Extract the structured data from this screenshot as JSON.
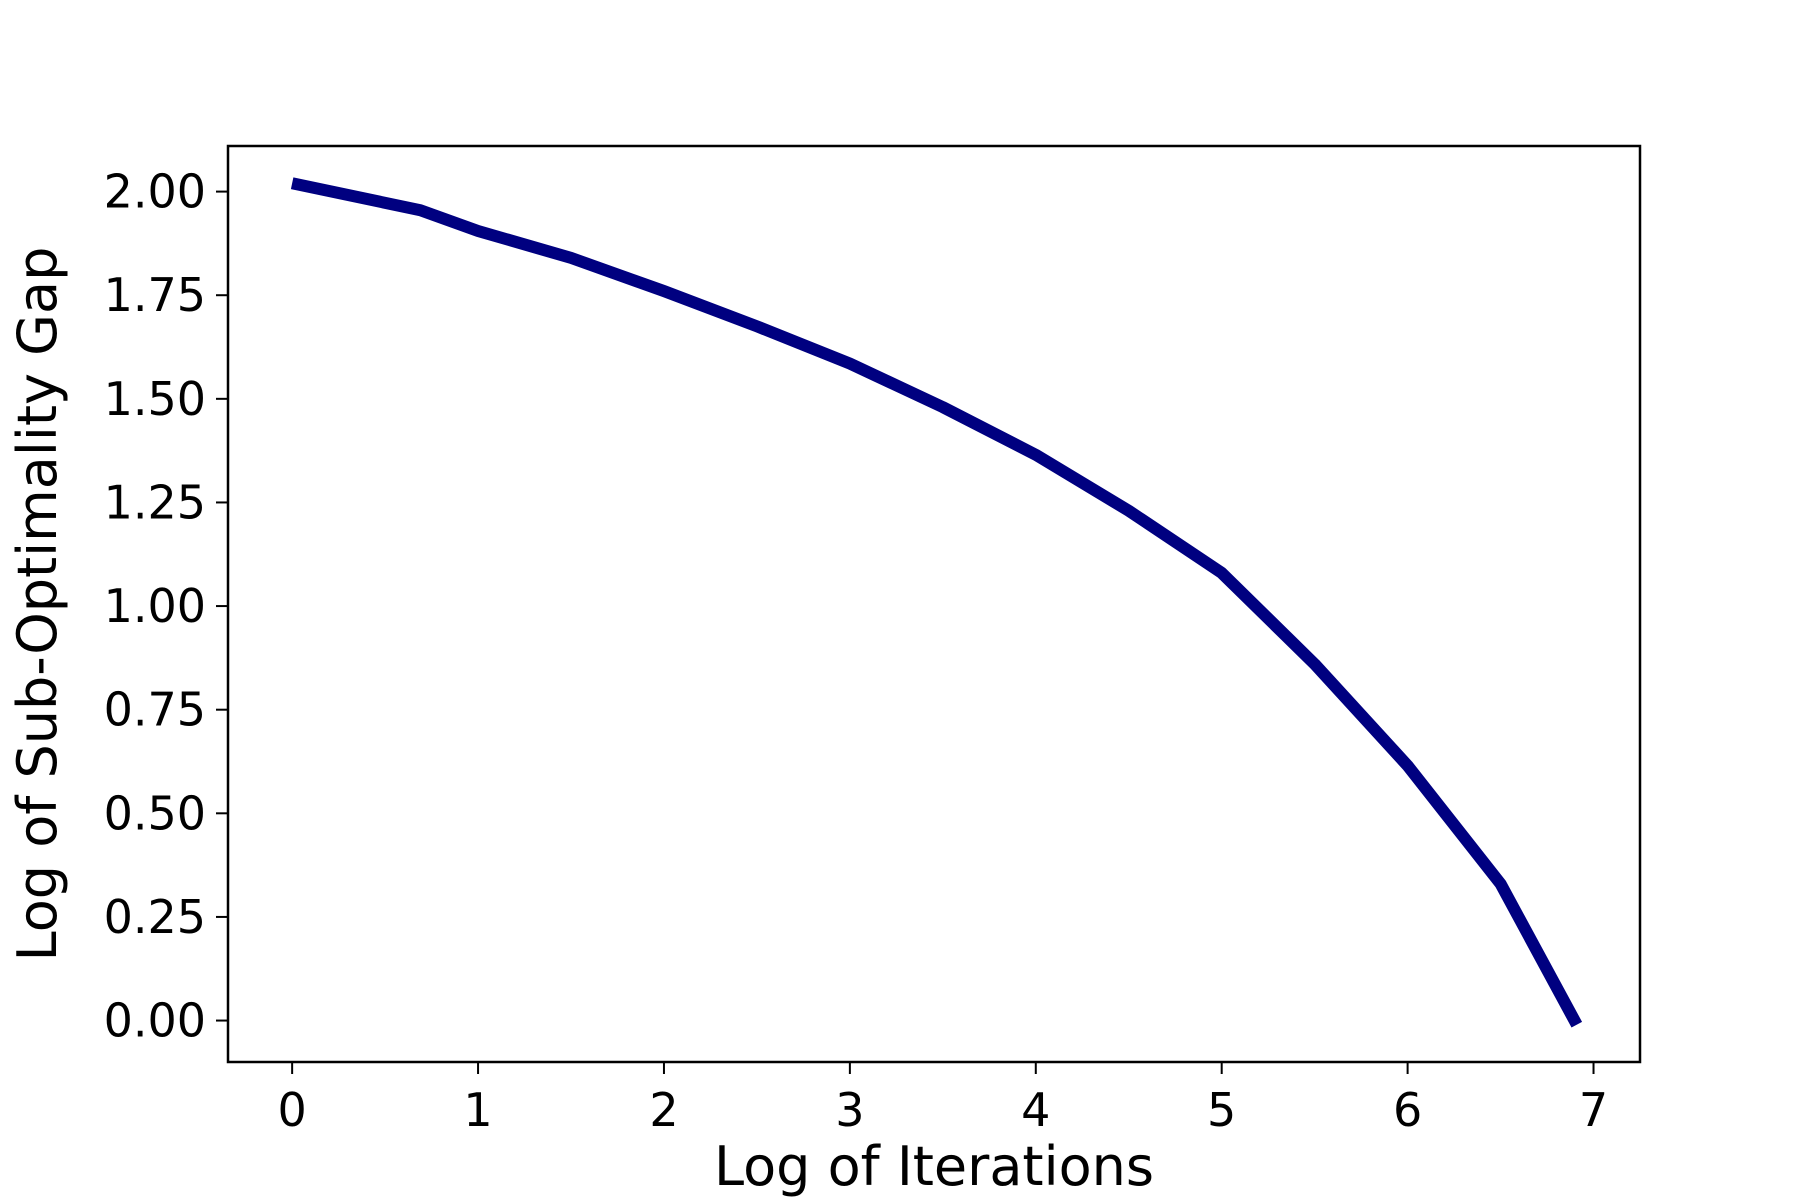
{
  "chart_data": {
    "type": "line",
    "x_label": "Log of Iterations",
    "y_label": "Log of Sub-Optimality Gap",
    "x": [
      0,
      0.69,
      1,
      1.5,
      2,
      2.5,
      3,
      3.5,
      4,
      4.5,
      5,
      5.5,
      6,
      6.5,
      6.91
    ],
    "series": [
      {
        "color": "#000080",
        "values": [
          2.02,
          1.955,
          1.905,
          1.84,
          1.76,
          1.675,
          1.585,
          1.48,
          1.365,
          1.23,
          1.08,
          0.86,
          0.615,
          0.33,
          -0.01
        ]
      }
    ],
    "xlim": [
      -0.345,
      7.25
    ],
    "ylim": [
      -0.1,
      2.11
    ],
    "xticks": [
      0,
      1,
      2,
      3,
      4,
      5,
      6,
      7
    ],
    "yticks": [
      {
        "value": 0,
        "label": "0.00"
      },
      {
        "value": 0.25,
        "label": "0.25"
      },
      {
        "value": 0.5,
        "label": "0.50"
      },
      {
        "value": 0.75,
        "label": "0.75"
      },
      {
        "value": 1,
        "label": "1.00"
      },
      {
        "value": 1.25,
        "label": "1.25"
      },
      {
        "value": 1.5,
        "label": "1.50"
      },
      {
        "value": 1.75,
        "label": "1.75"
      },
      {
        "value": 2,
        "label": "2.00"
      }
    ]
  }
}
